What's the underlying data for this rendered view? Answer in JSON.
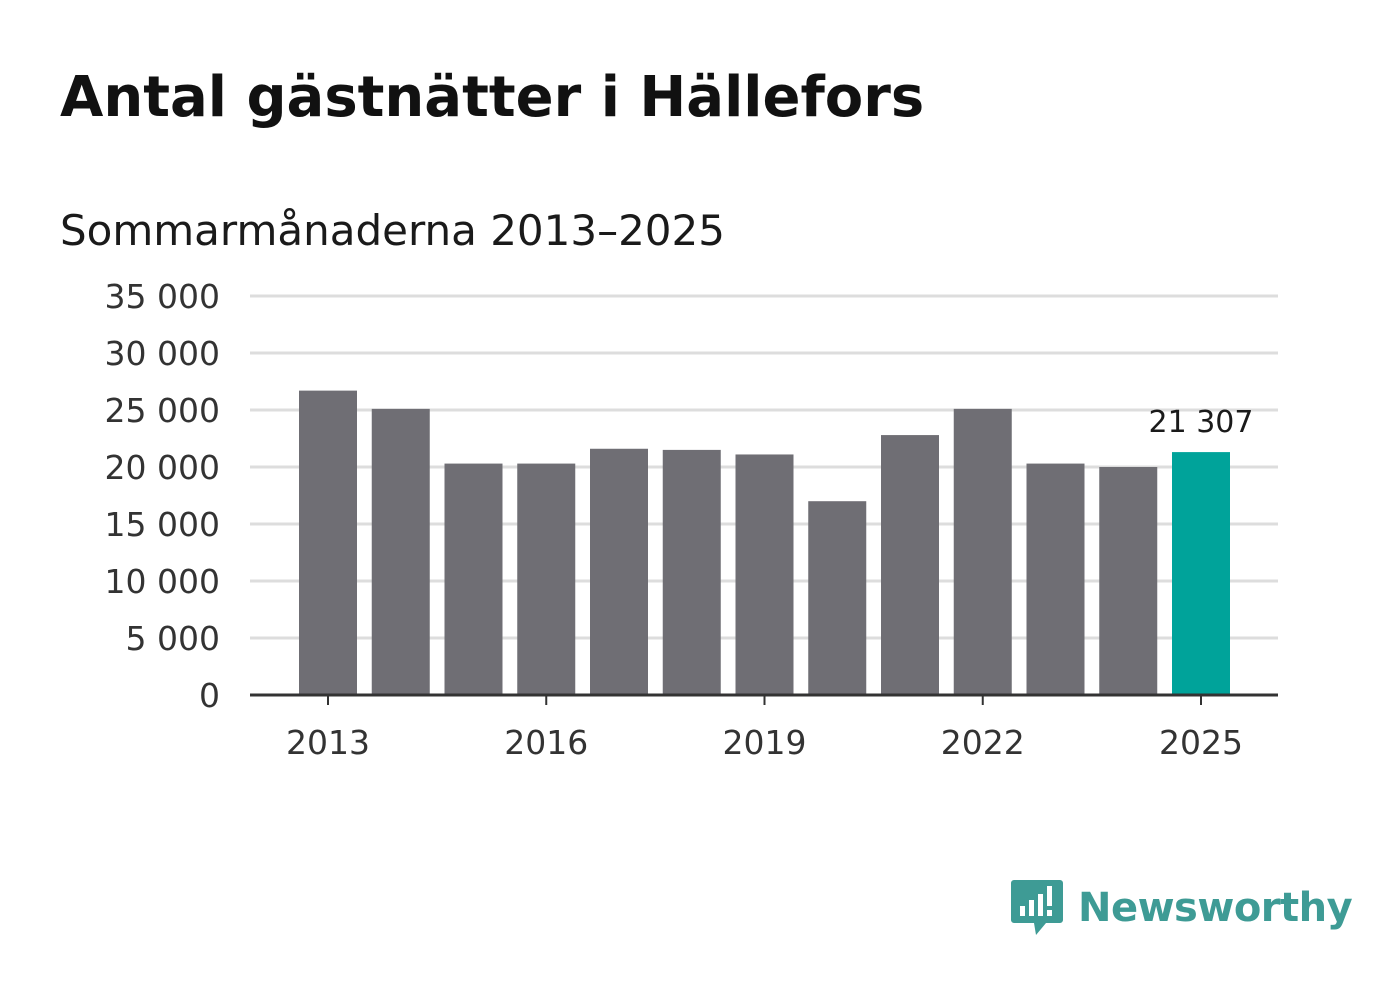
{
  "header": {
    "title": "Antal gästnätter i Hällefors",
    "subtitle": "Sommarmånaderna 2013–2025"
  },
  "colors": {
    "bar_default": "#6f6e74",
    "bar_highlight": "#00a39a",
    "grid": "#dddddd",
    "axis": "#333333",
    "logo": "#3e9b95"
  },
  "logo": {
    "icon": "newsworthy-chart-bubble-icon",
    "text": "Newsworthy"
  },
  "chart_data": {
    "type": "bar",
    "categories": [
      "2013",
      "2014",
      "2015",
      "2016",
      "2017",
      "2018",
      "2019",
      "2020",
      "2021",
      "2022",
      "2023",
      "2024",
      "2025"
    ],
    "values": [
      26700,
      25100,
      20300,
      20300,
      21600,
      21500,
      21100,
      17000,
      22800,
      25100,
      20300,
      20000,
      21307
    ],
    "highlight_category": "2025",
    "data_labels": [
      {
        "category": "2025",
        "text": "21 307"
      }
    ],
    "x_tick_labels": [
      "2013",
      "2016",
      "2019",
      "2022",
      "2025"
    ],
    "y_tick_values": [
      0,
      5000,
      10000,
      15000,
      20000,
      25000,
      30000,
      35000
    ],
    "y_tick_labels": [
      "0",
      "5 000",
      "10 000",
      "15 000",
      "20 000",
      "25 000",
      "30 000",
      "35 000"
    ],
    "ylim": [
      0,
      35000
    ],
    "grid": true,
    "legend": "none",
    "xlabel": "",
    "ylabel": ""
  }
}
